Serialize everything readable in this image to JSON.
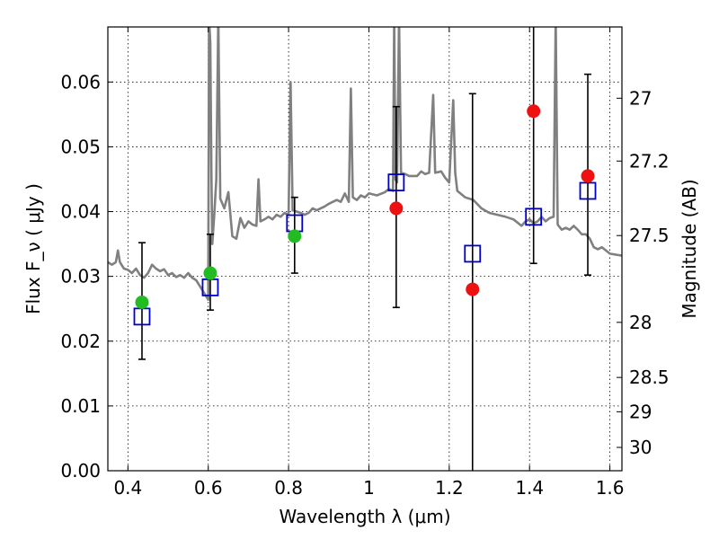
{
  "chart_data": {
    "type": "scatter",
    "title": "",
    "xlabel": "Wavelength  λ (μm)",
    "ylabel": "Flux  F_ν  ( μJy )",
    "ylabel_right": "Magnitude (AB)",
    "xlim": [
      0.35,
      1.63
    ],
    "ylim": [
      0.0,
      0.0685
    ],
    "grid": true,
    "x_ticks": [
      0.4,
      0.6,
      0.8,
      1.0,
      1.2,
      1.4,
      1.6
    ],
    "x_tick_labels": [
      "0.4",
      "0.6",
      "0.8",
      "1",
      "1.2",
      "1.4",
      "1.6"
    ],
    "y_ticks": [
      0.0,
      0.01,
      0.02,
      0.03,
      0.04,
      0.05,
      0.06
    ],
    "y_tick_labels": [
      "0.00",
      "0.01",
      "0.02",
      "0.03",
      "0.04",
      "0.05",
      "0.06"
    ],
    "right_ticks": [
      {
        "label": "27",
        "flux": 0.0575
      },
      {
        "label": "27.2",
        "flux": 0.0478
      },
      {
        "label": "27.5",
        "flux": 0.0363
      },
      {
        "label": "28",
        "flux": 0.0229
      },
      {
        "label": "28.5",
        "flux": 0.0144
      },
      {
        "label": "29",
        "flux": 0.0091
      },
      {
        "label": "30",
        "flux": 0.0036
      }
    ],
    "series": [
      {
        "kind": "spectrum",
        "color": "#808080",
        "points": [
          [
            0.35,
            0.0322
          ],
          [
            0.36,
            0.0318
          ],
          [
            0.37,
            0.0322
          ],
          [
            0.375,
            0.034
          ],
          [
            0.38,
            0.0322
          ],
          [
            0.39,
            0.0312
          ],
          [
            0.4,
            0.031
          ],
          [
            0.41,
            0.0305
          ],
          [
            0.42,
            0.0312
          ],
          [
            0.43,
            0.0302
          ],
          [
            0.44,
            0.0298
          ],
          [
            0.45,
            0.0305
          ],
          [
            0.46,
            0.0318
          ],
          [
            0.47,
            0.0312
          ],
          [
            0.48,
            0.0308
          ],
          [
            0.49,
            0.0311
          ],
          [
            0.5,
            0.0302
          ],
          [
            0.51,
            0.0305
          ],
          [
            0.52,
            0.0299
          ],
          [
            0.53,
            0.0302
          ],
          [
            0.54,
            0.0298
          ],
          [
            0.55,
            0.0305
          ],
          [
            0.56,
            0.0298
          ],
          [
            0.57,
            0.0294
          ],
          [
            0.58,
            0.0284
          ],
          [
            0.59,
            0.0274
          ],
          [
            0.6,
            0.0264
          ],
          [
            0.602,
            0.07
          ],
          [
            0.605,
            0.066
          ],
          [
            0.608,
            0.045
          ],
          [
            0.61,
            0.035
          ],
          [
            0.615,
            0.0395
          ],
          [
            0.62,
            0.045
          ],
          [
            0.625,
            0.07
          ],
          [
            0.63,
            0.042
          ],
          [
            0.64,
            0.0405
          ],
          [
            0.65,
            0.043
          ],
          [
            0.66,
            0.0362
          ],
          [
            0.67,
            0.0358
          ],
          [
            0.68,
            0.039
          ],
          [
            0.69,
            0.0375
          ],
          [
            0.7,
            0.0385
          ],
          [
            0.71,
            0.038
          ],
          [
            0.72,
            0.0378
          ],
          [
            0.725,
            0.045
          ],
          [
            0.73,
            0.0385
          ],
          [
            0.74,
            0.0388
          ],
          [
            0.75,
            0.0392
          ],
          [
            0.76,
            0.0388
          ],
          [
            0.77,
            0.0395
          ],
          [
            0.78,
            0.0392
          ],
          [
            0.79,
            0.0398
          ],
          [
            0.8,
            0.0395
          ],
          [
            0.805,
            0.06
          ],
          [
            0.81,
            0.0402
          ],
          [
            0.82,
            0.04
          ],
          [
            0.83,
            0.0398
          ],
          [
            0.84,
            0.0395
          ],
          [
            0.85,
            0.0398
          ],
          [
            0.86,
            0.0405
          ],
          [
            0.87,
            0.0402
          ],
          [
            0.88,
            0.0405
          ],
          [
            0.89,
            0.0408
          ],
          [
            0.9,
            0.0412
          ],
          [
            0.91,
            0.0415
          ],
          [
            0.92,
            0.0418
          ],
          [
            0.93,
            0.0415
          ],
          [
            0.94,
            0.0428
          ],
          [
            0.95,
            0.0415
          ],
          [
            0.955,
            0.059
          ],
          [
            0.96,
            0.0422
          ],
          [
            0.97,
            0.0418
          ],
          [
            0.98,
            0.0425
          ],
          [
            0.99,
            0.0422
          ],
          [
            1.0,
            0.0428
          ],
          [
            1.02,
            0.0425
          ],
          [
            1.04,
            0.043
          ],
          [
            1.05,
            0.0435
          ],
          [
            1.06,
            0.0432
          ],
          [
            1.063,
            0.07
          ],
          [
            1.066,
            0.045
          ],
          [
            1.07,
            0.0445
          ],
          [
            1.075,
            0.07
          ],
          [
            1.08,
            0.046
          ],
          [
            1.09,
            0.0458
          ],
          [
            1.1,
            0.0455
          ],
          [
            1.12,
            0.0455
          ],
          [
            1.13,
            0.0462
          ],
          [
            1.14,
            0.0458
          ],
          [
            1.15,
            0.046
          ],
          [
            1.16,
            0.058
          ],
          [
            1.165,
            0.046
          ],
          [
            1.18,
            0.0462
          ],
          [
            1.19,
            0.0452
          ],
          [
            1.2,
            0.0445
          ],
          [
            1.21,
            0.0572
          ],
          [
            1.215,
            0.046
          ],
          [
            1.22,
            0.0432
          ],
          [
            1.24,
            0.0422
          ],
          [
            1.26,
            0.0418
          ],
          [
            1.28,
            0.0405
          ],
          [
            1.3,
            0.0398
          ],
          [
            1.32,
            0.0395
          ],
          [
            1.34,
            0.0392
          ],
          [
            1.36,
            0.0388
          ],
          [
            1.38,
            0.0378
          ],
          [
            1.39,
            0.0385
          ],
          [
            1.4,
            0.0388
          ],
          [
            1.41,
            0.0382
          ],
          [
            1.42,
            0.0385
          ],
          [
            1.43,
            0.0392
          ],
          [
            1.44,
            0.0385
          ],
          [
            1.45,
            0.039
          ],
          [
            1.46,
            0.0392
          ],
          [
            1.465,
            0.07
          ],
          [
            1.47,
            0.038
          ],
          [
            1.48,
            0.0372
          ],
          [
            1.49,
            0.0375
          ],
          [
            1.5,
            0.0372
          ],
          [
            1.51,
            0.0378
          ],
          [
            1.52,
            0.0372
          ],
          [
            1.53,
            0.0365
          ],
          [
            1.54,
            0.0365
          ],
          [
            1.55,
            0.0358
          ],
          [
            1.56,
            0.0345
          ],
          [
            1.57,
            0.0342
          ],
          [
            1.58,
            0.0345
          ],
          [
            1.59,
            0.034
          ],
          [
            1.6,
            0.0335
          ],
          [
            1.63,
            0.0332
          ]
        ]
      },
      {
        "kind": "model_band",
        "marker": "open-square",
        "color": "#0000cc",
        "x": [
          0.435,
          0.605,
          0.815,
          1.068,
          1.258,
          1.41,
          1.545
        ],
        "y": [
          0.0238,
          0.0283,
          0.0382,
          0.0445,
          0.0335,
          0.0392,
          0.0432
        ]
      },
      {
        "kind": "observed",
        "marker": "filled-circle",
        "points": [
          {
            "x": 0.435,
            "y": 0.026,
            "err_low": 0.0172,
            "err_high": 0.0352,
            "color": "#22bb22"
          },
          {
            "x": 0.605,
            "y": 0.0305,
            "err_low": 0.0248,
            "err_high": 0.0365,
            "color": "#22bb22"
          },
          {
            "x": 0.815,
            "y": 0.0362,
            "err_low": 0.0305,
            "err_high": 0.0422,
            "color": "#22bb22"
          },
          {
            "x": 1.068,
            "y": 0.0405,
            "err_low": 0.0252,
            "err_high": 0.0562,
            "color": "#ee1111"
          },
          {
            "x": 1.258,
            "y": 0.028,
            "err_low": 0.0,
            "err_high": 0.0582,
            "color": "#ee1111"
          },
          {
            "x": 1.41,
            "y": 0.0555,
            "err_low": 0.032,
            "err_high": 0.0685,
            "color": "#ee1111"
          },
          {
            "x": 1.545,
            "y": 0.0455,
            "err_low": 0.0302,
            "err_high": 0.0612,
            "color": "#ee1111"
          }
        ]
      }
    ]
  }
}
